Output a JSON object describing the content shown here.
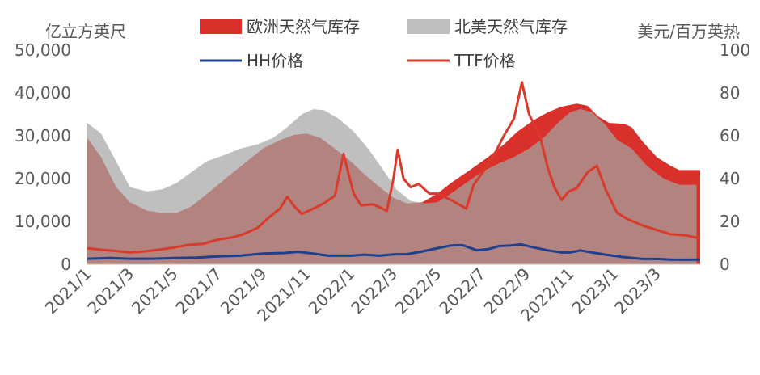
{
  "chart_data": {
    "type": "area",
    "y_left_unit": "亿立方英尺",
    "y_right_unit": "美元/百万英热",
    "y_left_ticks": [
      "0",
      "10,000",
      "20,000",
      "30,000",
      "40,000",
      "50,000"
    ],
    "y_right_ticks": [
      "0",
      "20",
      "40",
      "60",
      "80",
      "100"
    ],
    "ylim_left": [
      0,
      50000
    ],
    "ylim_right": [
      0,
      100
    ],
    "x_ticks": [
      "2021/1",
      "2021/3",
      "2021/5",
      "2021/7",
      "2021/9",
      "2021/11",
      "2022/1",
      "2022/3",
      "2022/5",
      "2022/7",
      "2022/9",
      "2022/11",
      "2023/1",
      "2023/3"
    ],
    "x_range": [
      "2021-01-01",
      "2023-04-30"
    ],
    "legend": {
      "eu_storage": "欧洲天然气库存",
      "us_storage": "北美天然气库存",
      "hh": "HH价格",
      "ttf": "TTF价格"
    },
    "colors": {
      "eu_storage": "#d9302b",
      "us_storage": "#bfbfbf",
      "overlap": "#b3837f",
      "hh": "#1f3f8f",
      "ttf": "#d93a2b"
    },
    "series": [
      {
        "name": "欧洲天然气库存",
        "axis": "left",
        "kind": "area",
        "points": [
          [
            "2021-01-01",
            29500
          ],
          [
            "2021-01-20",
            25000
          ],
          [
            "2021-02-10",
            18000
          ],
          [
            "2021-03-01",
            14500
          ],
          [
            "2021-03-25",
            12500
          ],
          [
            "2021-04-15",
            12000
          ],
          [
            "2021-05-05",
            12000
          ],
          [
            "2021-05-25",
            13500
          ],
          [
            "2021-06-20",
            17000
          ],
          [
            "2021-07-15",
            20500
          ],
          [
            "2021-08-10",
            24000
          ],
          [
            "2021-09-01",
            27000
          ],
          [
            "2021-09-25",
            29000
          ],
          [
            "2021-10-15",
            30200
          ],
          [
            "2021-11-01",
            30500
          ],
          [
            "2021-11-20",
            29500
          ],
          [
            "2021-12-10",
            27000
          ],
          [
            "2022-01-01",
            24000
          ],
          [
            "2022-01-20",
            21000
          ],
          [
            "2022-02-10",
            18000
          ],
          [
            "2022-03-01",
            15500
          ],
          [
            "2022-03-20",
            14200
          ],
          [
            "2022-04-10",
            14500
          ],
          [
            "2022-05-01",
            16500
          ],
          [
            "2022-05-20",
            19000
          ],
          [
            "2022-06-15",
            22000
          ],
          [
            "2022-07-10",
            25000
          ],
          [
            "2022-08-01",
            28000
          ],
          [
            "2022-08-20",
            31000
          ],
          [
            "2022-09-10",
            33500
          ],
          [
            "2022-10-01",
            35500
          ],
          [
            "2022-10-20",
            36800
          ],
          [
            "2022-11-10",
            37500
          ],
          [
            "2022-11-25",
            37000
          ],
          [
            "2022-12-10",
            34500
          ],
          [
            "2022-12-25",
            33000
          ],
          [
            "2023-01-15",
            32800
          ],
          [
            "2023-01-25",
            32000
          ],
          [
            "2023-02-10",
            28500
          ],
          [
            "2023-03-01",
            25000
          ],
          [
            "2023-03-20",
            23000
          ],
          [
            "2023-04-01",
            22000
          ],
          [
            "2023-04-20",
            22000
          ],
          [
            "2023-04-30",
            22000
          ]
        ]
      },
      {
        "name": "北美天然气库存",
        "axis": "left",
        "kind": "area",
        "points": [
          [
            "2021-01-01",
            33000
          ],
          [
            "2021-01-20",
            30500
          ],
          [
            "2021-02-10",
            24000
          ],
          [
            "2021-03-01",
            18000
          ],
          [
            "2021-03-25",
            17000
          ],
          [
            "2021-04-15",
            17500
          ],
          [
            "2021-05-05",
            19000
          ],
          [
            "2021-05-25",
            21500
          ],
          [
            "2021-06-15",
            24000
          ],
          [
            "2021-07-10",
            25500
          ],
          [
            "2021-08-01",
            27000
          ],
          [
            "2021-08-25",
            28000
          ],
          [
            "2021-09-15",
            29500
          ],
          [
            "2021-10-05",
            32000
          ],
          [
            "2021-10-25",
            35000
          ],
          [
            "2021-11-10",
            36200
          ],
          [
            "2021-11-25",
            36000
          ],
          [
            "2021-12-15",
            34000
          ],
          [
            "2022-01-05",
            31000
          ],
          [
            "2022-01-25",
            27000
          ],
          [
            "2022-02-15",
            22000
          ],
          [
            "2022-03-05",
            17500
          ],
          [
            "2022-03-25",
            14800
          ],
          [
            "2022-04-15",
            14200
          ],
          [
            "2022-05-01",
            14500
          ],
          [
            "2022-05-20",
            16500
          ],
          [
            "2022-06-10",
            19000
          ],
          [
            "2022-07-01",
            21500
          ],
          [
            "2022-07-25",
            23500
          ],
          [
            "2022-08-15",
            25000
          ],
          [
            "2022-09-05",
            27000
          ],
          [
            "2022-09-25",
            29500
          ],
          [
            "2022-10-15",
            33000
          ],
          [
            "2022-11-01",
            35500
          ],
          [
            "2022-11-15",
            36200
          ],
          [
            "2022-12-01",
            35500
          ],
          [
            "2022-12-20",
            32500
          ],
          [
            "2023-01-05",
            29000
          ],
          [
            "2023-01-25",
            27000
          ],
          [
            "2023-02-15",
            23000
          ],
          [
            "2023-03-10",
            20000
          ],
          [
            "2023-04-01",
            18500
          ],
          [
            "2023-04-25",
            18500
          ]
        ]
      },
      {
        "name": "HH价格",
        "axis": "right",
        "kind": "line",
        "points": [
          [
            "2021-01-01",
            2.6
          ],
          [
            "2021-02-01",
            2.9
          ],
          [
            "2021-03-01",
            2.6
          ],
          [
            "2021-04-01",
            2.6
          ],
          [
            "2021-05-01",
            2.9
          ],
          [
            "2021-06-01",
            3.1
          ],
          [
            "2021-07-01",
            3.7
          ],
          [
            "2021-08-01",
            4.0
          ],
          [
            "2021-09-01",
            5.0
          ],
          [
            "2021-10-01",
            5.3
          ],
          [
            "2021-10-20",
            5.8
          ],
          [
            "2021-11-10",
            5.0
          ],
          [
            "2021-12-01",
            4.0
          ],
          [
            "2022-01-01",
            4.0
          ],
          [
            "2022-01-20",
            4.5
          ],
          [
            "2022-02-10",
            4.0
          ],
          [
            "2022-03-01",
            4.6
          ],
          [
            "2022-03-20",
            4.7
          ],
          [
            "2022-04-10",
            6.0
          ],
          [
            "2022-05-01",
            7.5
          ],
          [
            "2022-05-20",
            8.8
          ],
          [
            "2022-06-05",
            8.9
          ],
          [
            "2022-06-25",
            6.5
          ],
          [
            "2022-07-10",
            7.0
          ],
          [
            "2022-07-25",
            8.5
          ],
          [
            "2022-08-10",
            8.8
          ],
          [
            "2022-08-25",
            9.3
          ],
          [
            "2022-09-10",
            8.0
          ],
          [
            "2022-10-01",
            6.5
          ],
          [
            "2022-10-20",
            5.5
          ],
          [
            "2022-11-01",
            5.5
          ],
          [
            "2022-11-15",
            6.5
          ],
          [
            "2022-12-01",
            5.5
          ],
          [
            "2022-12-20",
            4.5
          ],
          [
            "2023-01-10",
            3.5
          ],
          [
            "2023-01-25",
            3.0
          ],
          [
            "2023-02-10",
            2.5
          ],
          [
            "2023-03-01",
            2.5
          ],
          [
            "2023-03-20",
            2.2
          ],
          [
            "2023-04-10",
            2.1
          ],
          [
            "2023-04-30",
            2.2
          ]
        ]
      },
      {
        "name": "TTF价格",
        "axis": "right",
        "kind": "line",
        "points": [
          [
            "2021-01-01",
            7.5
          ],
          [
            "2021-01-20",
            6.8
          ],
          [
            "2021-02-10",
            6.2
          ],
          [
            "2021-03-01",
            5.5
          ],
          [
            "2021-03-20",
            6.0
          ],
          [
            "2021-04-10",
            6.8
          ],
          [
            "2021-05-01",
            7.8
          ],
          [
            "2021-05-20",
            9.0
          ],
          [
            "2021-06-10",
            9.5
          ],
          [
            "2021-07-01",
            11.5
          ],
          [
            "2021-07-20",
            12.5
          ],
          [
            "2021-08-05",
            14.0
          ],
          [
            "2021-08-25",
            17.0
          ],
          [
            "2021-09-10",
            22.0
          ],
          [
            "2021-09-25",
            26.0
          ],
          [
            "2021-10-05",
            31.5
          ],
          [
            "2021-10-15",
            27.0
          ],
          [
            "2021-10-25",
            23.5
          ],
          [
            "2021-11-10",
            26.0
          ],
          [
            "2021-11-25",
            28.5
          ],
          [
            "2021-12-10",
            32.0
          ],
          [
            "2021-12-22",
            51.5
          ],
          [
            "2022-01-05",
            33.0
          ],
          [
            "2022-01-15",
            27.5
          ],
          [
            "2022-02-01",
            28.0
          ],
          [
            "2022-02-20",
            25.0
          ],
          [
            "2022-03-01",
            40.0
          ],
          [
            "2022-03-07",
            53.5
          ],
          [
            "2022-03-15",
            40.0
          ],
          [
            "2022-03-25",
            36.0
          ],
          [
            "2022-04-05",
            37.5
          ],
          [
            "2022-04-20",
            33.0
          ],
          [
            "2022-05-01",
            33.0
          ],
          [
            "2022-05-20",
            30.0
          ],
          [
            "2022-06-10",
            26.0
          ],
          [
            "2022-06-20",
            37.0
          ],
          [
            "2022-07-05",
            44.0
          ],
          [
            "2022-07-20",
            52.0
          ],
          [
            "2022-08-01",
            60.0
          ],
          [
            "2022-08-15",
            68.0
          ],
          [
            "2022-08-26",
            85.0
          ],
          [
            "2022-09-05",
            70.0
          ],
          [
            "2022-09-20",
            60.0
          ],
          [
            "2022-10-01",
            45.0
          ],
          [
            "2022-10-10",
            36.0
          ],
          [
            "2022-10-20",
            30.0
          ],
          [
            "2022-10-30",
            34.0
          ],
          [
            "2022-11-10",
            35.5
          ],
          [
            "2022-11-25",
            43.0
          ],
          [
            "2022-12-08",
            46.0
          ],
          [
            "2022-12-20",
            35.0
          ],
          [
            "2023-01-05",
            24.0
          ],
          [
            "2023-01-20",
            21.0
          ],
          [
            "2023-02-10",
            18.0
          ],
          [
            "2023-03-01",
            16.0
          ],
          [
            "2023-03-20",
            14.0
          ],
          [
            "2023-04-10",
            13.5
          ],
          [
            "2023-04-30",
            12.0
          ]
        ]
      }
    ]
  }
}
